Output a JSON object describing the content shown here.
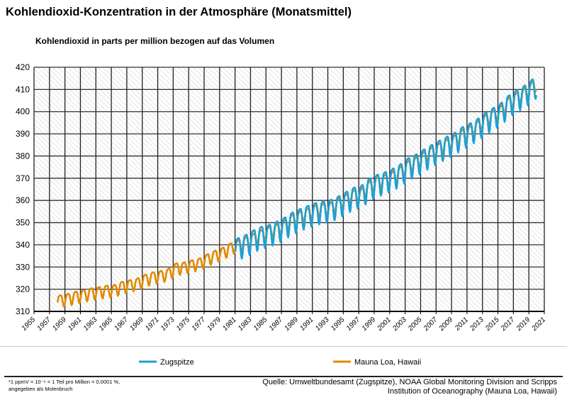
{
  "title": "Kohlendioxid-Konzentration in der Atmosphäre (Monatsmittel)",
  "footnote": [
    "*1 ppmV = 10⁻⁶ = 1 Teil pro Million = 0,0001 %,",
    "angegeben als Molenbruch"
  ],
  "source": [
    "Quelle: Umweltbundesamt (Zugspitze), NOAA Global Monitoring Division and Scripps",
    "Institution of Oceanography  (Mauna Loa, Hawaii)"
  ],
  "chart_data": {
    "type": "line",
    "title": "Kohlendioxid-Konzentration in der Atmosphäre (Monatsmittel)",
    "ylabel": "Kohlendioxid in parts per million bezogen auf das Volumen",
    "xlim": [
      1955,
      2021
    ],
    "ylim": [
      310,
      420
    ],
    "yticks": [
      310,
      320,
      330,
      340,
      350,
      360,
      370,
      380,
      390,
      400,
      410,
      420
    ],
    "xticks": [
      "1955",
      "1957",
      "1959",
      "1961",
      "1963",
      "1965",
      "1967",
      "1969",
      "1971",
      "1973",
      "1975",
      "1977",
      "1979",
      "1981",
      "1983",
      "1985",
      "1987",
      "1989",
      "1991",
      "1993",
      "1995",
      "1997",
      "1999",
      "2001",
      "2003",
      "2005",
      "2007",
      "2009",
      "2011",
      "2013",
      "2015",
      "2017",
      "2019",
      "2021"
    ],
    "grid": true,
    "legend": "bottom",
    "series": [
      {
        "name": "Zugspitze",
        "color": "#1aa0d8",
        "seasonal_amplitude_ppm": 11,
        "years": [
          1981,
          1982,
          1983,
          1984,
          1985,
          1986,
          1987,
          1988,
          1989,
          1990,
          1991,
          1992,
          1993,
          1994,
          1995,
          1996,
          1997,
          1998,
          1999,
          2000,
          2001,
          2002,
          2003,
          2004,
          2005,
          2006,
          2007,
          2008,
          2009,
          2010,
          2011,
          2012,
          2013,
          2014,
          2015,
          2016,
          2017,
          2018,
          2019
        ],
        "annual_mean": [
          339.5,
          341.0,
          343.0,
          344.5,
          345.5,
          347.0,
          348.8,
          351.0,
          352.6,
          354.0,
          355.2,
          356.0,
          356.8,
          358.4,
          360.4,
          362.2,
          363.4,
          366.3,
          368.0,
          369.2,
          370.8,
          372.9,
          375.5,
          377.2,
          379.4,
          381.5,
          383.4,
          385.2,
          387.0,
          389.5,
          391.3,
          393.4,
          396.1,
          398.2,
          400.5,
          403.8,
          406.2,
          408.2,
          411.0
        ]
      },
      {
        "name": "Mauna Loa, Hawaii",
        "color": "#e08a00",
        "seasonal_amplitude_ppm": 6,
        "years": [
          1958,
          1959,
          1960,
          1961,
          1962,
          1963,
          1964,
          1965,
          1966,
          1967,
          1968,
          1969,
          1970,
          1971,
          1972,
          1973,
          1974,
          1975,
          1976,
          1977,
          1978,
          1979,
          1980,
          1981,
          1982,
          1983,
          1984,
          1985,
          1986,
          1987,
          1988,
          1989,
          1990,
          1991,
          1992,
          1993,
          1994,
          1995,
          1996,
          1997,
          1998,
          1999,
          2000,
          2001,
          2002,
          2003,
          2004,
          2005,
          2006,
          2007,
          2008,
          2009,
          2010,
          2011,
          2012,
          2013,
          2014,
          2015,
          2016,
          2017,
          2018,
          2019
        ],
        "annual_mean": [
          315.3,
          315.97,
          316.91,
          317.64,
          318.45,
          318.99,
          319.62,
          320.04,
          321.38,
          322.16,
          323.04,
          324.62,
          325.68,
          326.32,
          327.45,
          329.68,
          330.18,
          331.11,
          332.04,
          333.83,
          335.4,
          336.84,
          338.75,
          340.11,
          341.45,
          343.05,
          344.65,
          346.12,
          347.42,
          349.19,
          351.57,
          353.12,
          354.39,
          355.61,
          356.45,
          357.1,
          358.83,
          360.82,
          362.61,
          363.73,
          366.7,
          368.38,
          369.55,
          371.14,
          373.28,
          375.8,
          377.52,
          379.8,
          381.9,
          383.79,
          385.6,
          387.43,
          389.9,
          391.65,
          393.85,
          396.52,
          398.65,
          400.83,
          404.24,
          406.55,
          408.52,
          411.44
        ]
      }
    ]
  }
}
